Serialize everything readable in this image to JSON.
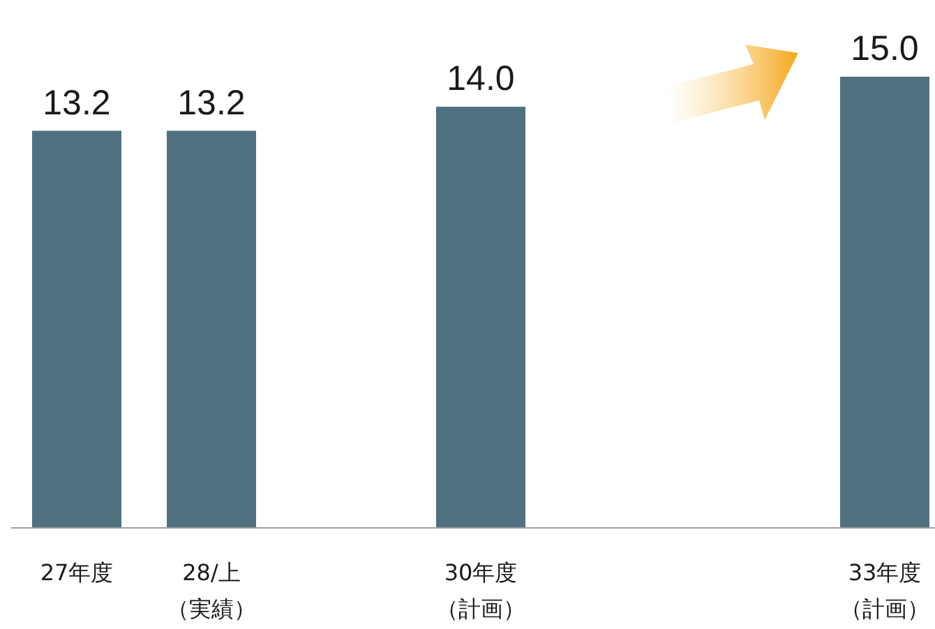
{
  "chart_data": {
    "type": "bar",
    "categories": [
      "27年度",
      "28/上（実績）",
      null,
      "30年度（計画）",
      null,
      null,
      "33年度（計画）"
    ],
    "values": [
      13.2,
      13.2,
      null,
      14.0,
      null,
      null,
      15.0
    ],
    "value_labels": [
      "13.2",
      "13.2",
      null,
      "14.0",
      null,
      null,
      "15.0"
    ],
    "color": "#50717f"
  }
}
